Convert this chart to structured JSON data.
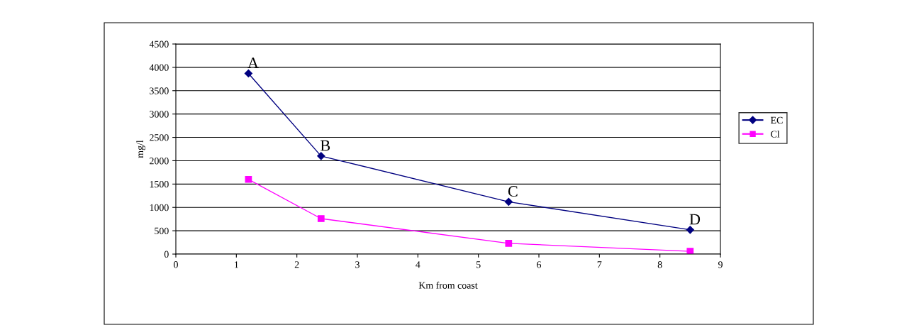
{
  "chart_data": {
    "type": "line",
    "xlabel": "Km from coast",
    "ylabel": "mg/l",
    "series": [
      {
        "name": "EC",
        "color": "#000080",
        "x": [
          1.2,
          2.4,
          5.5,
          8.5
        ],
        "values": [
          3870,
          2100,
          1120,
          520
        ],
        "marker": "diamond"
      },
      {
        "name": "Cl",
        "color": "#ff00ff",
        "x": [
          1.2,
          2.4,
          5.5,
          8.5
        ],
        "values": [
          1600,
          760,
          230,
          60
        ],
        "marker": "square"
      }
    ],
    "xlim": [
      0,
      9
    ],
    "xticks": [
      0,
      1,
      2,
      3,
      4,
      5,
      6,
      7,
      8,
      9
    ],
    "ylim": [
      0,
      4500
    ],
    "yticks": [
      0,
      500,
      1000,
      1500,
      2000,
      2500,
      3000,
      3500,
      4000,
      4500
    ],
    "annotations": [
      {
        "text": "A",
        "x": 1.2,
        "y": 3870
      },
      {
        "text": "B",
        "x": 2.4,
        "y": 2100
      },
      {
        "text": "C",
        "x": 5.5,
        "y": 1120
      },
      {
        "text": "D",
        "x": 8.5,
        "y": 520
      }
    ],
    "grid": "y",
    "legend": "right",
    "line_style": "solid"
  }
}
